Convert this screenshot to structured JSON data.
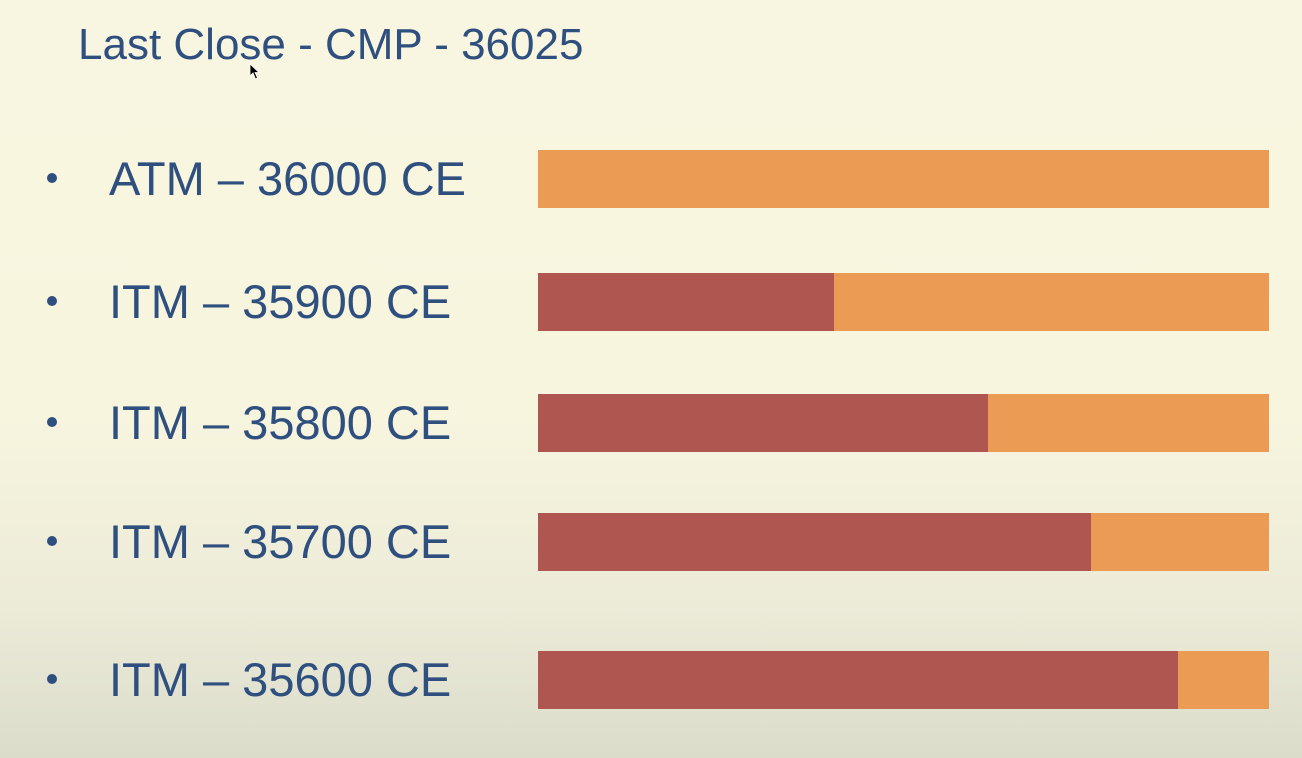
{
  "slide": {
    "title": "Last Close - CMP - 36025",
    "colors": {
      "title_text": "#2f4f7f",
      "bar_base": "#ec9b55",
      "bar_fill": "#b05650"
    },
    "items": [
      {
        "label": "ATM – 36000 CE",
        "fill_fraction": 0.0
      },
      {
        "label": "ITM – 35900 CE",
        "fill_fraction": 0.405
      },
      {
        "label": "ITM – 35800 CE",
        "fill_fraction": 0.615
      },
      {
        "label": "ITM – 35700 CE",
        "fill_fraction": 0.757
      },
      {
        "label": "ITM – 35600 CE",
        "fill_fraction": 0.875
      }
    ]
  }
}
